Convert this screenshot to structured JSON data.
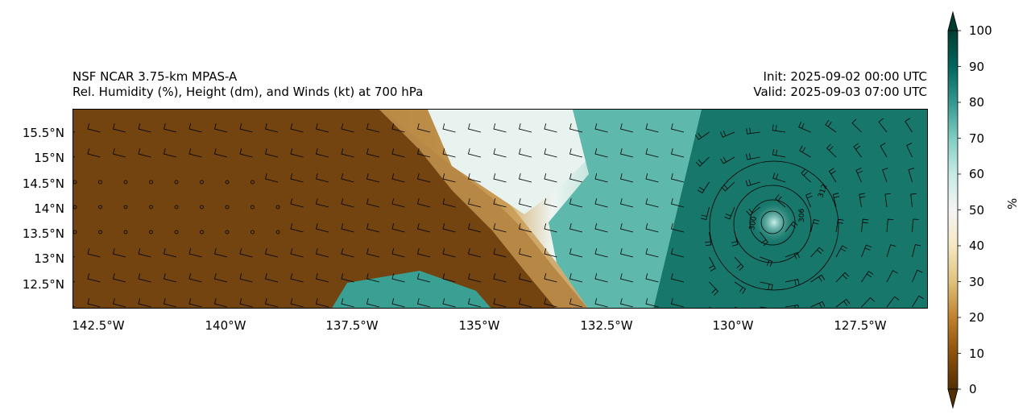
{
  "title_left": [
    "NSF NCAR 3.75-km MPAS-A",
    "Rel. Humidity (%), Height (dm), and Winds (kt) at 700 hPa"
  ],
  "title_right": [
    "Init: 2025-09-02 00:00 UTC",
    "Valid: 2025-09-03 07:00 UTC"
  ],
  "lat_ticks": [
    "15.5°N",
    "15°N",
    "14.5°N",
    "14°N",
    "13.5°N",
    "13°N",
    "12.5°N"
  ],
  "lon_ticks": [
    "142.5°W",
    "140°W",
    "137.5°W",
    "135°W",
    "132.5°W",
    "130°W",
    "127.5°W"
  ],
  "colorbar": {
    "label": "%",
    "ticks": [
      "0",
      "10",
      "20",
      "30",
      "40",
      "50",
      "60",
      "70",
      "80",
      "90",
      "100"
    ],
    "colormap": [
      "#543005",
      "#8c510a",
      "#bf812d",
      "#dfc27d",
      "#f6e8c3",
      "#f5f5f5",
      "#c7eae5",
      "#80cdc1",
      "#35978f",
      "#01665e",
      "#003c30"
    ]
  },
  "contour_labels": [
    "300",
    "306",
    "312"
  ]
}
